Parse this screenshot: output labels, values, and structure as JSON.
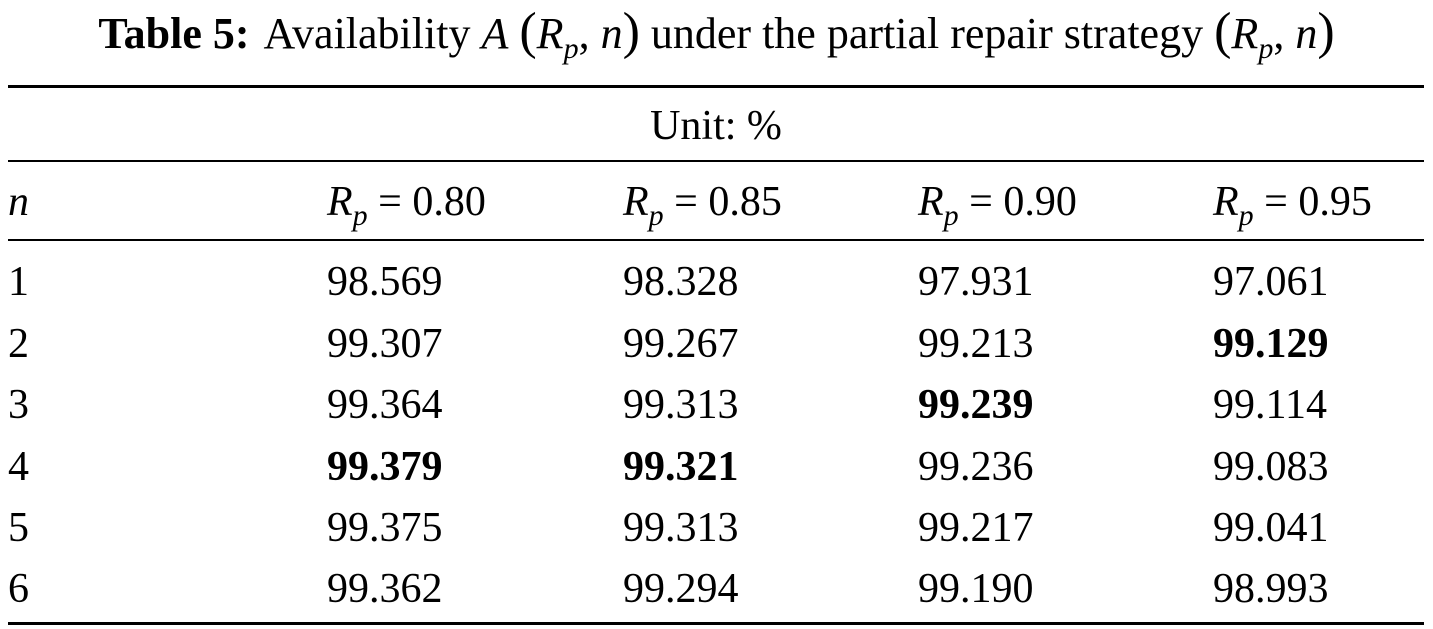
{
  "caption": {
    "label": "Table 5:",
    "prefix": "Availability",
    "func": "A",
    "var_R": "R",
    "var_sub": "p",
    "var_n": "n",
    "middle": "under the partial repair strategy"
  },
  "unit_label": "Unit: %",
  "header": {
    "n": "n",
    "columns": [
      {
        "symbol": "R",
        "sub": "p",
        "value": "= 0.80"
      },
      {
        "symbol": "R",
        "sub": "p",
        "value": "= 0.85"
      },
      {
        "symbol": "R",
        "sub": "p",
        "value": "= 0.90"
      },
      {
        "symbol": "R",
        "sub": "p",
        "value": "= 0.95"
      }
    ]
  },
  "rows": [
    {
      "n": "1",
      "values": [
        "98.569",
        "98.328",
        "97.931",
        "97.061"
      ]
    },
    {
      "n": "2",
      "values": [
        "99.307",
        "99.267",
        "99.213",
        "99.129"
      ]
    },
    {
      "n": "3",
      "values": [
        "99.364",
        "99.313",
        "99.239",
        "99.114"
      ]
    },
    {
      "n": "4",
      "values": [
        "99.379",
        "99.321",
        "99.236",
        "99.083"
      ]
    },
    {
      "n": "5",
      "values": [
        "99.375",
        "99.313",
        "99.217",
        "99.041"
      ]
    },
    {
      "n": "6",
      "values": [
        "99.362",
        "99.294",
        "99.190",
        "98.993"
      ]
    }
  ],
  "bold_cells": [
    "r2c4",
    "r3c3",
    "r4c1",
    "r4c2"
  ]
}
